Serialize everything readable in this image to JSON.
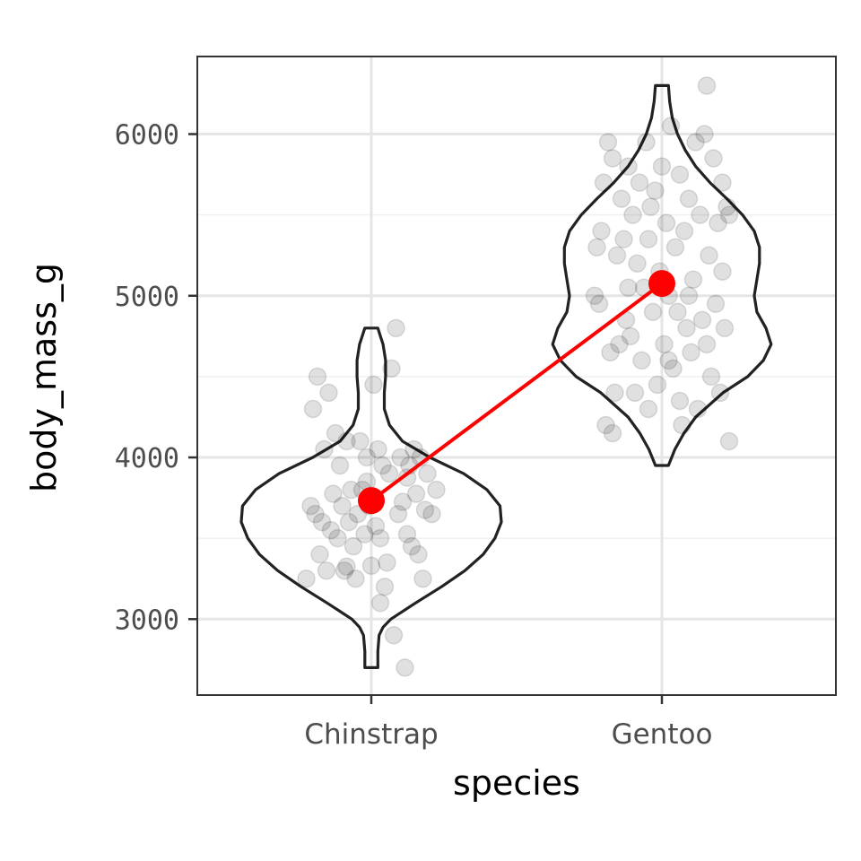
{
  "chart_data": {
    "type": "violin",
    "xlabel": "species",
    "ylabel": "body_mass_g",
    "categories": [
      "Chinstrap",
      "Gentoo"
    ],
    "y_ticks": [
      3000,
      4000,
      5000,
      6000
    ],
    "y_tick_labels": [
      "3000",
      "4000",
      "5000",
      "6000"
    ],
    "ylim": [
      2530,
      6480
    ],
    "grid": true,
    "colors": {
      "violin_outline": "#222222",
      "points": "#000000",
      "mean": "#ff0000",
      "grid_major": "#e5e5e5",
      "grid_minor": "#f0f0f0",
      "panel_border": "#333333"
    },
    "violins": [
      {
        "category": "Chinstrap",
        "min": 2700,
        "max": 4800,
        "profile": [
          [
            2700,
            0.05
          ],
          [
            2800,
            0.05
          ],
          [
            2900,
            0.06
          ],
          [
            2950,
            0.09
          ],
          [
            3000,
            0.15
          ],
          [
            3100,
            0.34
          ],
          [
            3200,
            0.54
          ],
          [
            3300,
            0.72
          ],
          [
            3400,
            0.86
          ],
          [
            3500,
            0.95
          ],
          [
            3600,
            1.0
          ],
          [
            3700,
            0.99
          ],
          [
            3800,
            0.89
          ],
          [
            3900,
            0.71
          ],
          [
            4000,
            0.45
          ],
          [
            4100,
            0.24
          ],
          [
            4200,
            0.14
          ],
          [
            4300,
            0.1
          ],
          [
            4400,
            0.1
          ],
          [
            4500,
            0.11
          ],
          [
            4600,
            0.11
          ],
          [
            4700,
            0.09
          ],
          [
            4750,
            0.07
          ],
          [
            4800,
            0.05
          ]
        ]
      },
      {
        "category": "Gentoo",
        "min": 3950,
        "max": 6300,
        "profile": [
          [
            3950,
            0.05
          ],
          [
            4050,
            0.1
          ],
          [
            4150,
            0.17
          ],
          [
            4250,
            0.26
          ],
          [
            4400,
            0.47
          ],
          [
            4500,
            0.66
          ],
          [
            4600,
            0.78
          ],
          [
            4700,
            0.84
          ],
          [
            4800,
            0.8
          ],
          [
            4900,
            0.73
          ],
          [
            5000,
            0.71
          ],
          [
            5100,
            0.73
          ],
          [
            5200,
            0.75
          ],
          [
            5300,
            0.75
          ],
          [
            5400,
            0.71
          ],
          [
            5500,
            0.62
          ],
          [
            5600,
            0.5
          ],
          [
            5700,
            0.37
          ],
          [
            5800,
            0.26
          ],
          [
            5900,
            0.18
          ],
          [
            6000,
            0.12
          ],
          [
            6100,
            0.08
          ],
          [
            6200,
            0.06
          ],
          [
            6300,
            0.05
          ]
        ]
      }
    ],
    "means": [
      {
        "category": "Chinstrap",
        "y": 3733
      },
      {
        "category": "Gentoo",
        "y": 5076
      }
    ],
    "points": {
      "Chinstrap": [
        [
          -0.29,
          3250
        ],
        [
          -0.27,
          3700
        ],
        [
          -0.26,
          4300
        ],
        [
          -0.25,
          3650
        ],
        [
          -0.24,
          4500
        ],
        [
          -0.23,
          3400
        ],
        [
          -0.22,
          3600
        ],
        [
          -0.21,
          4050
        ],
        [
          -0.2,
          3300
        ],
        [
          -0.19,
          4400
        ],
        [
          -0.18,
          3550
        ],
        [
          -0.17,
          3775
        ],
        [
          -0.16,
          4150
        ],
        [
          -0.15,
          3500
        ],
        [
          -0.14,
          3950
        ],
        [
          -0.13,
          3700
        ],
        [
          -0.12,
          3300
        ],
        [
          -0.11,
          4100
        ],
        [
          -0.1,
          3600
        ],
        [
          -0.09,
          3800
        ],
        [
          -0.08,
          3450
        ],
        [
          -0.07,
          3250
        ],
        [
          -0.06,
          3650
        ],
        [
          -0.05,
          4100
        ],
        [
          -0.04,
          3800
        ],
        [
          -0.03,
          3525
        ],
        [
          -0.02,
          3850
        ],
        [
          -0.01,
          3700
        ],
        [
          0.0,
          3330
        ],
        [
          0.01,
          4450
        ],
        [
          0.02,
          3575
        ],
        [
          0.03,
          4050
        ],
        [
          0.04,
          3500
        ],
        [
          0.05,
          3950
        ],
        [
          0.06,
          3200
        ],
        [
          0.07,
          3350
        ],
        [
          0.08,
          3900
        ],
        [
          0.09,
          4550
        ],
        [
          0.1,
          2900
        ],
        [
          0.11,
          4800
        ],
        [
          0.12,
          3650
        ],
        [
          0.13,
          4000
        ],
        [
          0.14,
          3725
        ],
        [
          0.15,
          2700
        ],
        [
          0.16,
          3525
        ],
        [
          0.17,
          3950
        ],
        [
          0.18,
          3450
        ],
        [
          0.19,
          4050
        ],
        [
          0.2,
          3775
        ],
        [
          0.21,
          3400
        ],
        [
          0.22,
          4000
        ],
        [
          0.23,
          3250
        ],
        [
          0.24,
          3675
        ],
        [
          0.25,
          3900
        ],
        [
          0.27,
          3650
        ],
        [
          0.29,
          3800
        ],
        [
          -0.02,
          4000
        ],
        [
          0.04,
          3100
        ],
        [
          -0.11,
          3325
        ],
        [
          0.16,
          3875
        ]
      ],
      "Gentoo": [
        [
          -0.3,
          5000
        ],
        [
          -0.28,
          4950
        ],
        [
          -0.27,
          5400
        ],
        [
          -0.26,
          5700
        ],
        [
          -0.25,
          4200
        ],
        [
          -0.24,
          5950
        ],
        [
          -0.23,
          4650
        ],
        [
          -0.22,
          5850
        ],
        [
          -0.21,
          4400
        ],
        [
          -0.2,
          5250
        ],
        [
          -0.19,
          4700
        ],
        [
          -0.18,
          5600
        ],
        [
          -0.17,
          5350
        ],
        [
          -0.16,
          4850
        ],
        [
          -0.15,
          5800
        ],
        [
          -0.14,
          4750
        ],
        [
          -0.13,
          5500
        ],
        [
          -0.12,
          4400
        ],
        [
          -0.11,
          5200
        ],
        [
          -0.1,
          5700
        ],
        [
          -0.09,
          4600
        ],
        [
          -0.08,
          5050
        ],
        [
          -0.07,
          5950
        ],
        [
          -0.06,
          4300
        ],
        [
          -0.05,
          5550
        ],
        [
          -0.04,
          4900
        ],
        [
          -0.03,
          5650
        ],
        [
          -0.02,
          4450
        ],
        [
          -0.01,
          5150
        ],
        [
          0.0,
          5800
        ],
        [
          0.01,
          4700
        ],
        [
          0.02,
          5450
        ],
        [
          0.03,
          5000
        ],
        [
          0.04,
          6050
        ],
        [
          0.05,
          4550
        ],
        [
          0.06,
          5300
        ],
        [
          0.07,
          4900
        ],
        [
          0.08,
          5750
        ],
        [
          0.09,
          4200
        ],
        [
          0.1,
          5400
        ],
        [
          0.11,
          4800
        ],
        [
          0.12,
          5600
        ],
        [
          0.13,
          4650
        ],
        [
          0.14,
          5100
        ],
        [
          0.15,
          5950
        ],
        [
          0.16,
          4300
        ],
        [
          0.17,
          5500
        ],
        [
          0.18,
          4850
        ],
        [
          0.19,
          6000
        ],
        [
          0.2,
          4700
        ],
        [
          0.21,
          5250
        ],
        [
          0.22,
          4500
        ],
        [
          0.23,
          5850
        ],
        [
          0.24,
          4950
        ],
        [
          0.25,
          5450
        ],
        [
          0.26,
          4400
        ],
        [
          0.27,
          5700
        ],
        [
          0.28,
          4800
        ],
        [
          0.29,
          5550
        ],
        [
          0.3,
          4100
        ],
        [
          -0.22,
          4150
        ],
        [
          -0.15,
          5050
        ],
        [
          -0.06,
          5350
        ],
        [
          0.03,
          4600
        ],
        [
          0.12,
          5000
        ],
        [
          0.2,
          6300
        ],
        [
          0.27,
          5150
        ],
        [
          -0.29,
          5300
        ],
        [
          0.3,
          5500
        ],
        [
          0.08,
          4350
        ]
      ]
    }
  }
}
